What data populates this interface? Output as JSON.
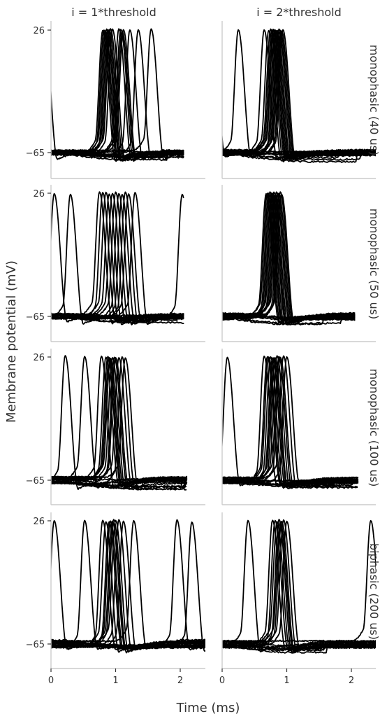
{
  "chart_data": {
    "type": "line",
    "layout": "facet grid, 4 rows x 2 columns",
    "columns": [
      "i = 1*threshold",
      "i = 2*threshold"
    ],
    "rows": [
      "monophasic (40 us)",
      "monophasic (50 us)",
      "monophasic (100 us)",
      "biphasic (200 us)"
    ],
    "xlabel": "Time (ms)",
    "ylabel": "Membrane potential (mV)",
    "xlim": [
      0,
      2.4
    ],
    "ylim": [
      -72,
      28
    ],
    "xticks": [
      "0",
      "1",
      "2"
    ],
    "yticks": [
      "26",
      "−65"
    ],
    "xtick_values": [
      0,
      1,
      2
    ],
    "ytick_values": [
      26,
      -65
    ],
    "grid": false,
    "line_color": "#000000",
    "resting_potential_mV": -65,
    "peak_potential_mV": 26,
    "panels": [
      {
        "row": 0,
        "col": 0,
        "trace_end_ms": 2.05,
        "baseline_spread_mV": 3.5,
        "spike_peak_times_ms": [
          -0.1,
          0.8,
          0.82,
          0.84,
          0.86,
          0.88,
          0.9,
          0.92,
          0.95,
          1.05,
          1.08,
          1.1,
          1.12,
          1.22,
          1.35,
          1.55
        ]
      },
      {
        "row": 0,
        "col": 1,
        "trace_end_ms": 2.4,
        "baseline_spread_mV": 4.0,
        "spike_peak_times_ms": [
          -0.15,
          0.25,
          0.65,
          0.72,
          0.75,
          0.77,
          0.79,
          0.8,
          0.82,
          0.84,
          0.86,
          0.88,
          0.9,
          0.92,
          0.94
        ]
      },
      {
        "row": 1,
        "col": 0,
        "trace_end_ms": 2.05,
        "baseline_spread_mV": 4.0,
        "spike_peak_times_ms": [
          0.05,
          0.3,
          0.75,
          0.8,
          0.85,
          0.9,
          0.95,
          1.0,
          1.05,
          1.1,
          1.15,
          1.2,
          1.3,
          2.03
        ]
      },
      {
        "row": 1,
        "col": 1,
        "trace_end_ms": 2.05,
        "baseline_spread_mV": 4.5,
        "spike_peak_times_ms": [
          0.68,
          0.7,
          0.72,
          0.74,
          0.76,
          0.78,
          0.8,
          0.82,
          0.84,
          0.86,
          0.88,
          0.9,
          0.92
        ]
      },
      {
        "row": 2,
        "col": 0,
        "trace_end_ms": 2.1,
        "baseline_spread_mV": 5.0,
        "spike_peak_times_ms": [
          0.22,
          0.52,
          0.78,
          0.85,
          0.88,
          0.9,
          0.92,
          0.95,
          0.98,
          1.0,
          1.05,
          1.1,
          1.15
        ]
      },
      {
        "row": 2,
        "col": 1,
        "trace_end_ms": 2.1,
        "baseline_spread_mV": 5.5,
        "spike_peak_times_ms": [
          0.08,
          0.65,
          0.7,
          0.72,
          0.75,
          0.78,
          0.8,
          0.82,
          0.85,
          0.88,
          0.9,
          0.95,
          1.0
        ]
      },
      {
        "row": 3,
        "col": 0,
        "trace_end_ms": 2.4,
        "baseline_spread_mV": 6.0,
        "spike_peak_times_ms": [
          0.05,
          0.52,
          0.8,
          0.85,
          0.9,
          0.92,
          0.95,
          0.97,
          1.0,
          1.05,
          1.12,
          1.28,
          1.95,
          2.18
        ]
      },
      {
        "row": 3,
        "col": 1,
        "trace_end_ms": 2.4,
        "baseline_spread_mV": 5.5,
        "spike_peak_times_ms": [
          0.4,
          0.78,
          0.82,
          0.85,
          0.88,
          0.9,
          0.92,
          0.95,
          1.0,
          2.3
        ]
      }
    ]
  }
}
